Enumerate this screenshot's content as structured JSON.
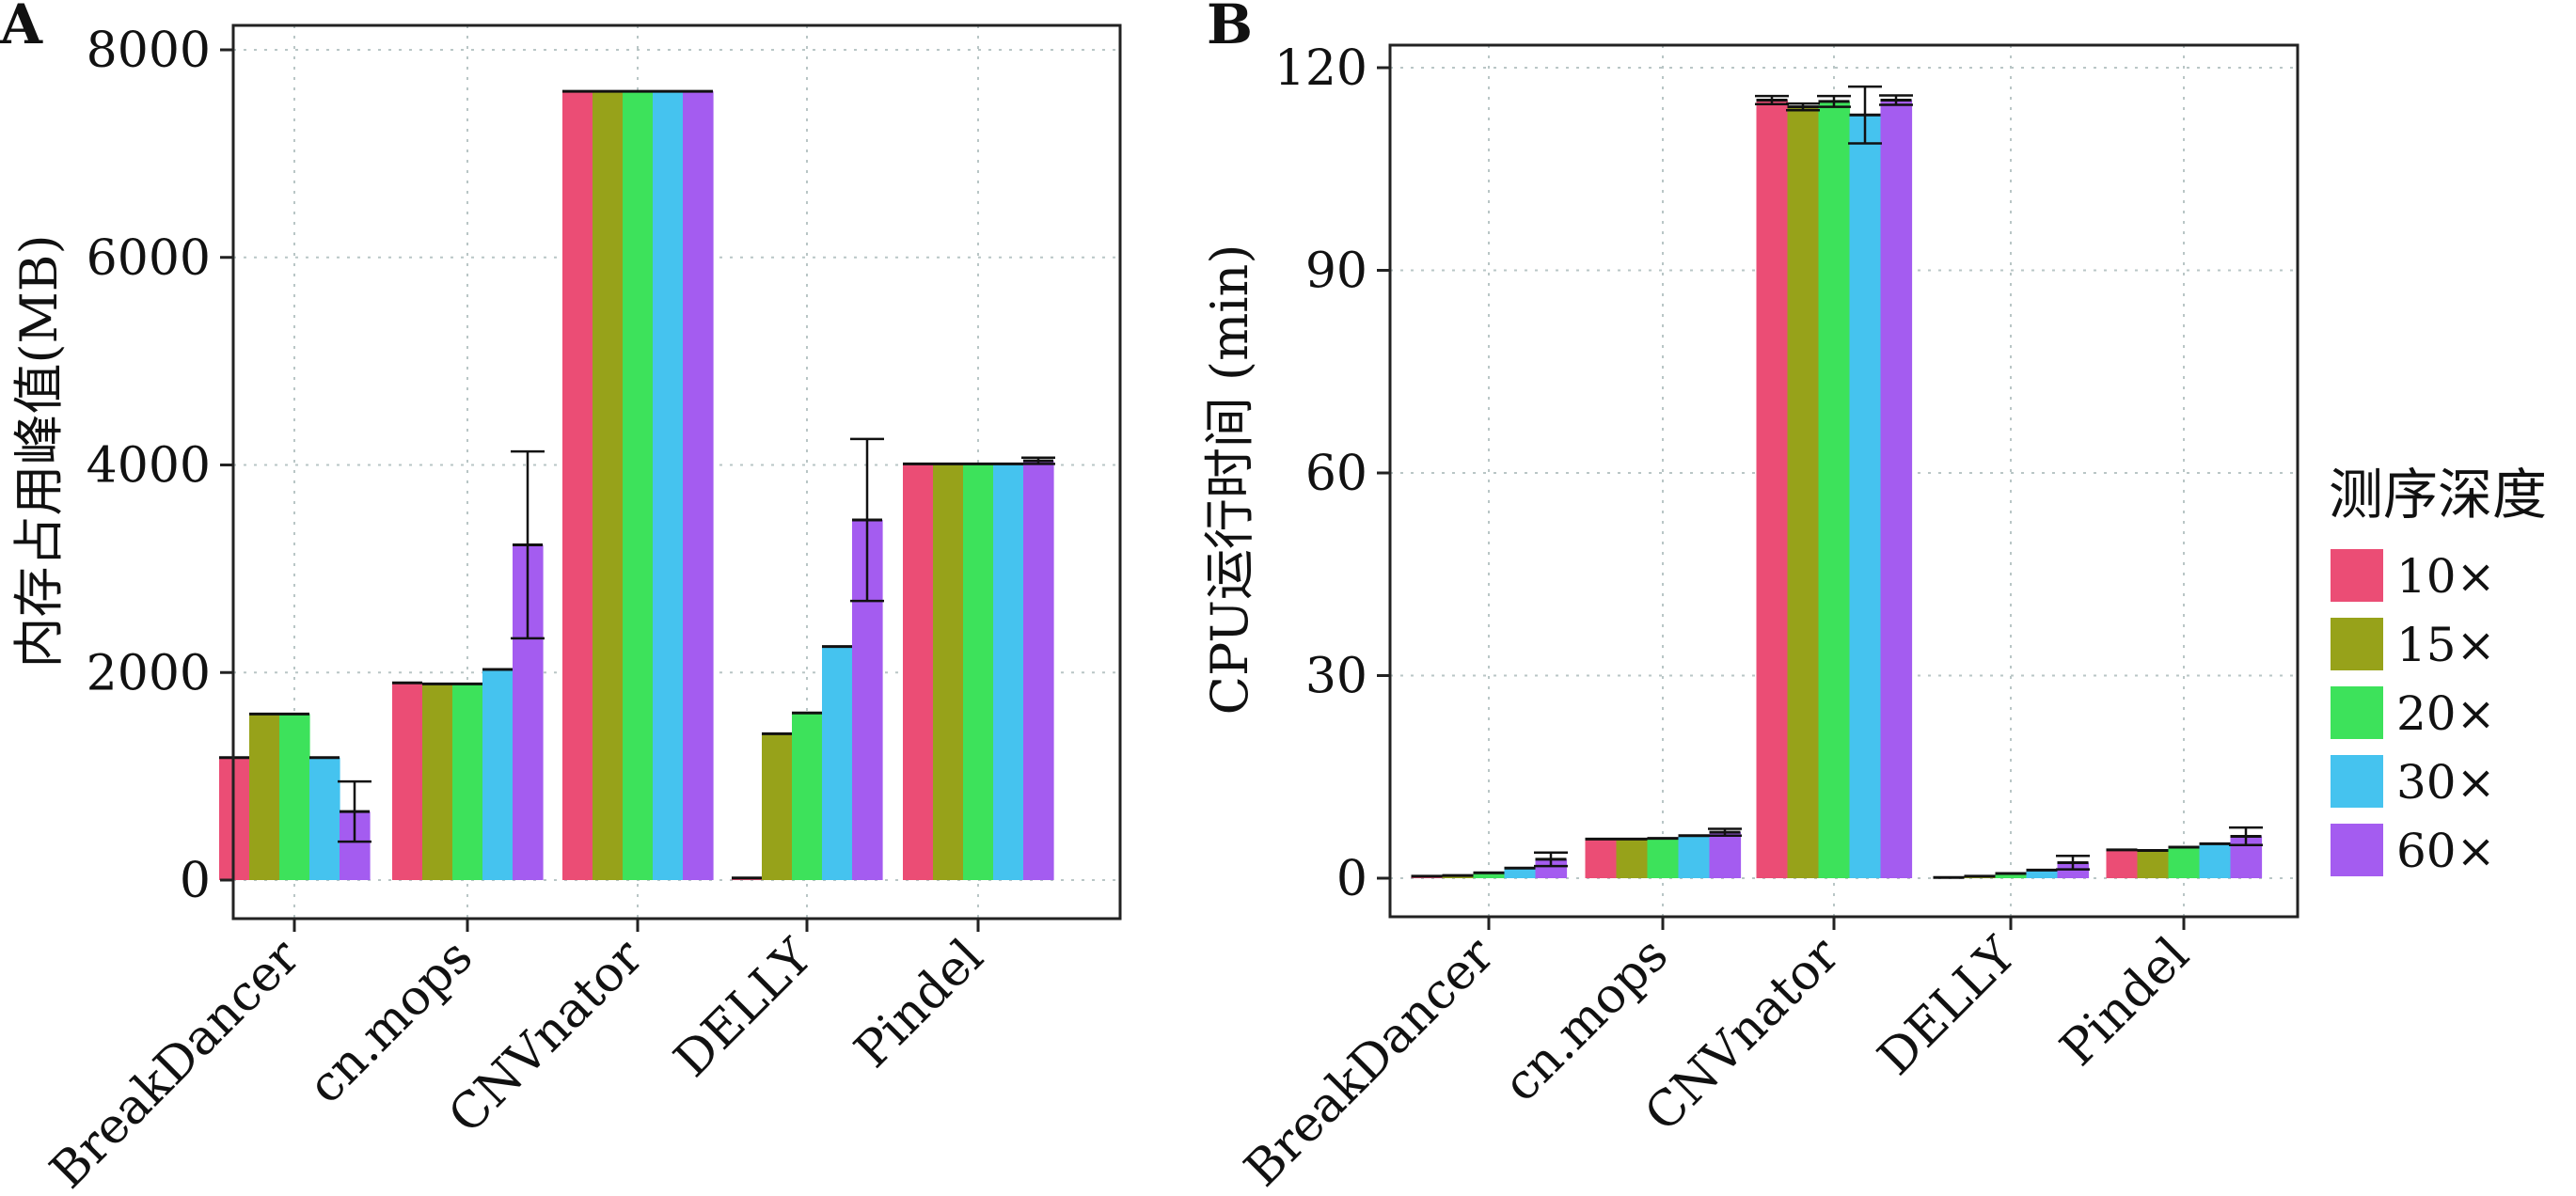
{
  "legend": {
    "title": "测序深度",
    "placement": "right"
  },
  "chart_data": [
    {
      "panel_label": "A",
      "type": "bar",
      "ylabel": "内存占用峰值(MB)",
      "ylim": [
        -200,
        8100
      ],
      "yticks": [
        0,
        2000,
        4000,
        6000,
        8000
      ],
      "grid": true,
      "categories": [
        "BreakDancer",
        "cn.mops",
        "CNVnator",
        "DELLY",
        "Pindel"
      ],
      "series": [
        {
          "name": "10×",
          "color": "#EB4D75",
          "values": [
            1180,
            1900,
            7600,
            20,
            4010
          ],
          "errors": [
            0,
            0,
            0,
            0,
            0
          ]
        },
        {
          "name": "15×",
          "color": "#97A21A",
          "values": [
            1600,
            1890,
            7600,
            1410,
            4010
          ],
          "errors": [
            0,
            0,
            0,
            0,
            0
          ]
        },
        {
          "name": "20×",
          "color": "#3DE25B",
          "values": [
            1600,
            1890,
            7600,
            1610,
            4010
          ],
          "errors": [
            0,
            0,
            0,
            0,
            0
          ]
        },
        {
          "name": "30×",
          "color": "#45C3EF",
          "values": [
            1180,
            2030,
            7600,
            2250,
            4010
          ],
          "errors": [
            0,
            0,
            0,
            0,
            0
          ]
        },
        {
          "name": "60×",
          "color": "#A45CF0",
          "values": [
            660,
            3230,
            7600,
            3470,
            4040
          ],
          "errors": [
            290,
            900,
            0,
            780,
            30
          ]
        }
      ]
    },
    {
      "panel_label": "B",
      "type": "bar",
      "ylabel": "CPU运行时间 (min)",
      "ylim": [
        -5,
        124
      ],
      "yticks": [
        0,
        30,
        60,
        90,
        120
      ],
      "grid": true,
      "categories": [
        "BreakDancer",
        "cn.mops",
        "CNVnator",
        "DELLY",
        "Pindel"
      ],
      "series": [
        {
          "name": "10×",
          "color": "#EB4D75",
          "values": [
            0.3,
            5.8,
            115.2,
            0.1,
            4.2
          ],
          "errors": [
            0,
            0,
            0.6,
            0,
            0
          ]
        },
        {
          "name": "15×",
          "color": "#97A21A",
          "values": [
            0.4,
            5.8,
            114.2,
            0.3,
            4.1
          ],
          "errors": [
            0,
            0,
            0.5,
            0,
            0
          ]
        },
        {
          "name": "20×",
          "color": "#3DE25B",
          "values": [
            0.8,
            5.9,
            115.0,
            0.7,
            4.6
          ],
          "errors": [
            0,
            0,
            0.8,
            0,
            0
          ]
        },
        {
          "name": "30×",
          "color": "#45C3EF",
          "values": [
            1.5,
            6.3,
            113.0,
            1.2,
            5.1
          ],
          "errors": [
            0,
            0,
            4.2,
            0,
            0
          ]
        },
        {
          "name": "60×",
          "color": "#A45CF0",
          "values": [
            2.8,
            6.8,
            115.2,
            2.3,
            6.2
          ],
          "errors": [
            1.0,
            0.5,
            0.7,
            1.0,
            1.3
          ]
        }
      ]
    }
  ]
}
